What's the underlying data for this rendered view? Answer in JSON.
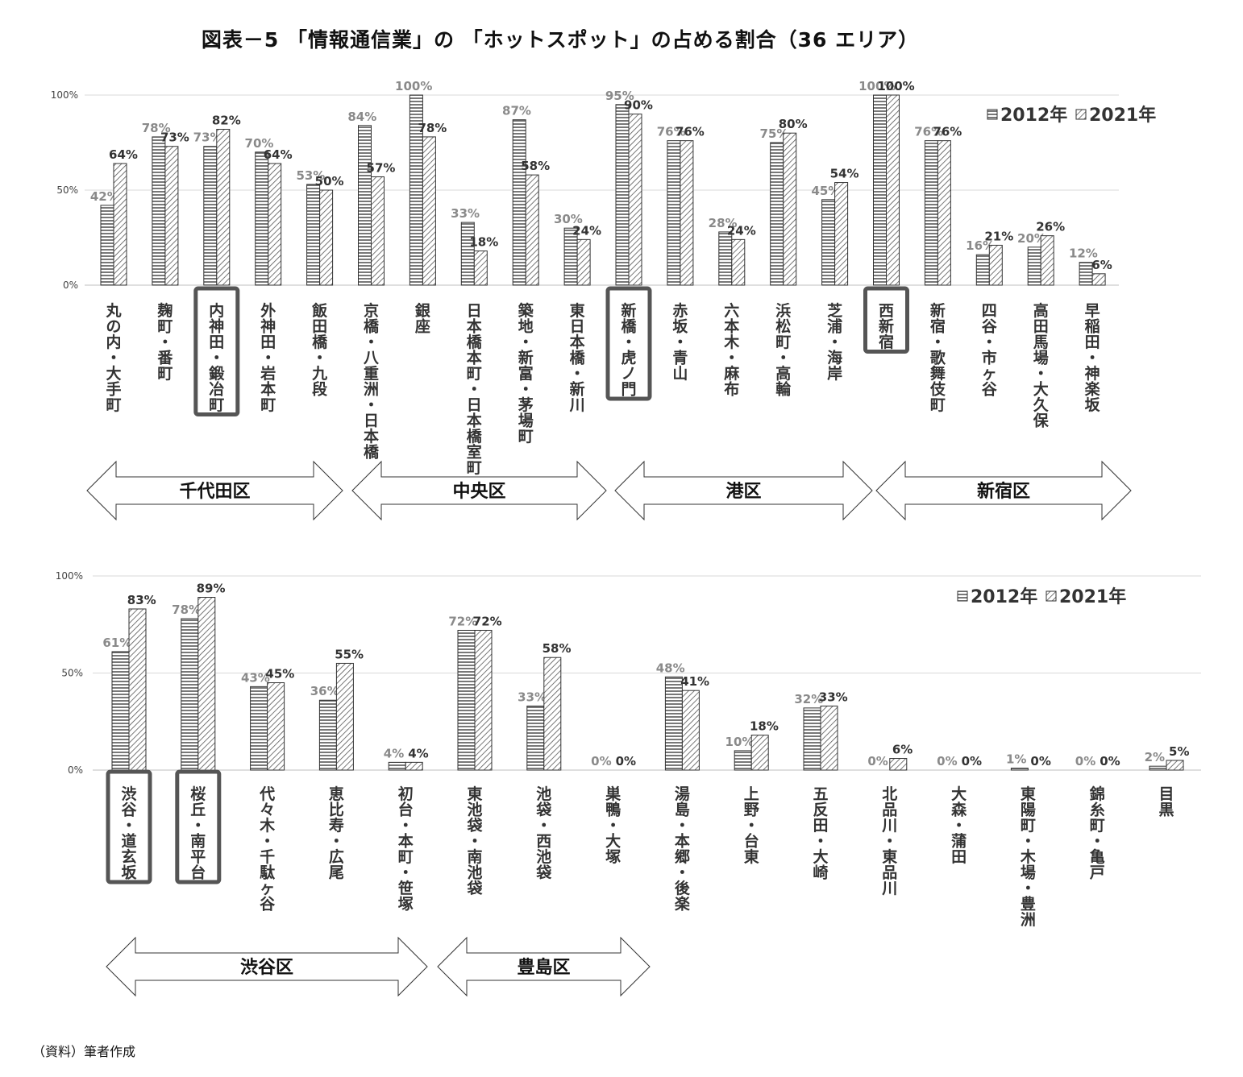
{
  "title": "図表－5 「情報通信業」の 「ホットスポット」の占める割合（36 エリア）",
  "source": "（資料）筆者作成",
  "colors": {
    "bar_stroke": "#333333",
    "pattern_line": "#555555",
    "grid": "#d9d9d9",
    "highlight_box": "#555555"
  },
  "chart_data": [
    {
      "type": "bar",
      "title": "",
      "xlabel": "",
      "ylabel": "",
      "ylim": [
        0,
        100
      ],
      "yticks": [
        "0%",
        "50%",
        "100%"
      ],
      "legend_position": "top-right",
      "series": [
        {
          "name": "2012年",
          "pattern": "horizontal-stripes",
          "values": [
            42,
            78,
            73,
            70,
            53,
            84,
            100,
            33,
            87,
            30,
            95,
            76,
            28,
            75,
            45,
            100,
            76,
            16,
            20,
            12
          ],
          "labels": [
            "42%",
            "78%",
            "73%",
            "70%",
            "53%",
            "84%",
            "100%",
            "33%",
            "87%",
            "30%",
            "95%",
            "76%",
            "28%",
            "75%",
            "45%",
            "100%",
            "76%",
            "16%",
            "20%",
            "12%"
          ]
        },
        {
          "name": "2021年",
          "pattern": "diagonal-hatch",
          "values": [
            64,
            73,
            82,
            64,
            50,
            57,
            78,
            18,
            58,
            24,
            90,
            76,
            24,
            80,
            54,
            100,
            76,
            21,
            26,
            6
          ],
          "labels": [
            "64%",
            "73%",
            "82%",
            "64%",
            "50%",
            "57%",
            "78%",
            "18%",
            "58%",
            "24%",
            "90%",
            "76%",
            "24%",
            "80%",
            "54%",
            "100%",
            "76%",
            "21%",
            "26%",
            "6%"
          ]
        }
      ],
      "categories": [
        "丸の内・大手町",
        "麹町・番町",
        "内神田・鍛冶町",
        "外神田・岩本町",
        "飯田橋・九段",
        "京橋・八重洲・日本橋",
        "銀座",
        "日本橋本町・日本橋室町",
        "築地・新富・茅場町",
        "東日本橋・新川",
        "新橋・虎ノ門",
        "赤坂・青山",
        "六本木・麻布",
        "浜松町・高輪",
        "芝浦・海岸",
        "西新宿",
        "新宿・歌舞伎町",
        "四谷・市ヶ谷",
        "高田馬場・大久保",
        "早稲田・神楽坂"
      ],
      "highlighted": [
        "内神田・鍛冶町",
        "新橋・虎ノ門",
        "西新宿"
      ],
      "wards": [
        {
          "name": "千代田区",
          "from": 0,
          "to": 4
        },
        {
          "name": "中央区",
          "from": 5,
          "to": 9
        },
        {
          "name": "港区",
          "from": 10,
          "to": 14
        },
        {
          "name": "新宿区",
          "from": 15,
          "to": 19
        }
      ]
    },
    {
      "type": "bar",
      "title": "",
      "xlabel": "",
      "ylabel": "",
      "ylim": [
        0,
        100
      ],
      "yticks": [
        "0%",
        "50%",
        "100%"
      ],
      "legend_position": "top-right",
      "series": [
        {
          "name": "2012年",
          "pattern": "horizontal-stripes",
          "values": [
            61,
            78,
            43,
            36,
            4,
            72,
            33,
            0,
            48,
            10,
            32,
            0,
            0,
            1,
            0,
            2
          ],
          "labels": [
            "61%",
            "78%",
            "43%",
            "36%",
            "4%",
            "72%",
            "33%",
            "0%",
            "48%",
            "10%",
            "32%",
            "0%",
            "0%",
            "1%",
            "0%",
            "2%"
          ]
        },
        {
          "name": "2021年",
          "pattern": "diagonal-hatch",
          "values": [
            83,
            89,
            45,
            55,
            4,
            72,
            58,
            0,
            41,
            18,
            33,
            6,
            0,
            0,
            0,
            5
          ],
          "labels": [
            "83%",
            "89%",
            "45%",
            "55%",
            "4%",
            "72%",
            "58%",
            "0%",
            "41%",
            "18%",
            "33%",
            "6%",
            "0%",
            "0%",
            "0%",
            "5%"
          ]
        }
      ],
      "categories": [
        "渋谷・道玄坂",
        "桜丘・南平台",
        "代々木・千駄ヶ谷",
        "恵比寿・広尾",
        "初台・本町・笹塚",
        "東池袋・南池袋",
        "池袋・西池袋",
        "巣鴨・大塚",
        "湯島・本郷・後楽",
        "上野・台東",
        "五反田・大崎",
        "北品川・東品川",
        "大森・蒲田",
        "東陽町・木場・豊洲",
        "錦糸町・亀戸",
        "目黒"
      ],
      "highlighted": [
        "渋谷・道玄坂",
        "桜丘・南平台"
      ],
      "wards": [
        {
          "name": "渋谷区",
          "from": 0,
          "to": 4
        },
        {
          "name": "豊島区",
          "from": 5,
          "to": 7
        }
      ]
    }
  ]
}
